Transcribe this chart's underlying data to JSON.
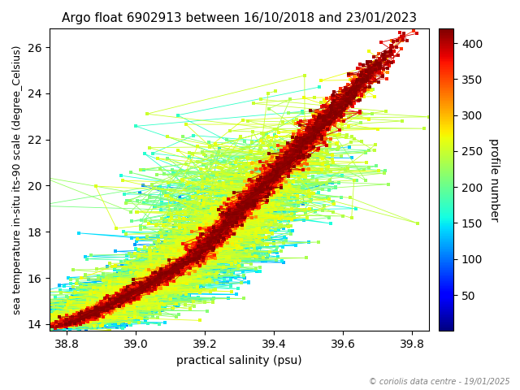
{
  "title": "Argo float 6902913 between 16/10/2018 and 23/01/2023",
  "xlabel": "practical salinity (psu)",
  "ylabel": "sea temperature in-situ its-90 scale (degree_Celsius)",
  "colorbar_label": "profile number",
  "xlim": [
    38.75,
    39.85
  ],
  "ylim": [
    13.7,
    26.8
  ],
  "xticks": [
    38.8,
    39.0,
    39.2,
    39.4,
    39.6,
    39.8
  ],
  "yticks": [
    14,
    16,
    18,
    20,
    22,
    24,
    26
  ],
  "cmap": "jet",
  "vmin": 0,
  "vmax": 420,
  "colorbar_ticks": [
    50,
    100,
    150,
    200,
    250,
    300,
    350,
    400
  ],
  "copyright_text": "© coriolis data centre - 19/01/2025",
  "n_profiles": 420,
  "seed": 7,
  "markersize": 2.5,
  "linewidth": 0.6,
  "figwidth": 6.4,
  "figheight": 4.8,
  "dpi": 100
}
